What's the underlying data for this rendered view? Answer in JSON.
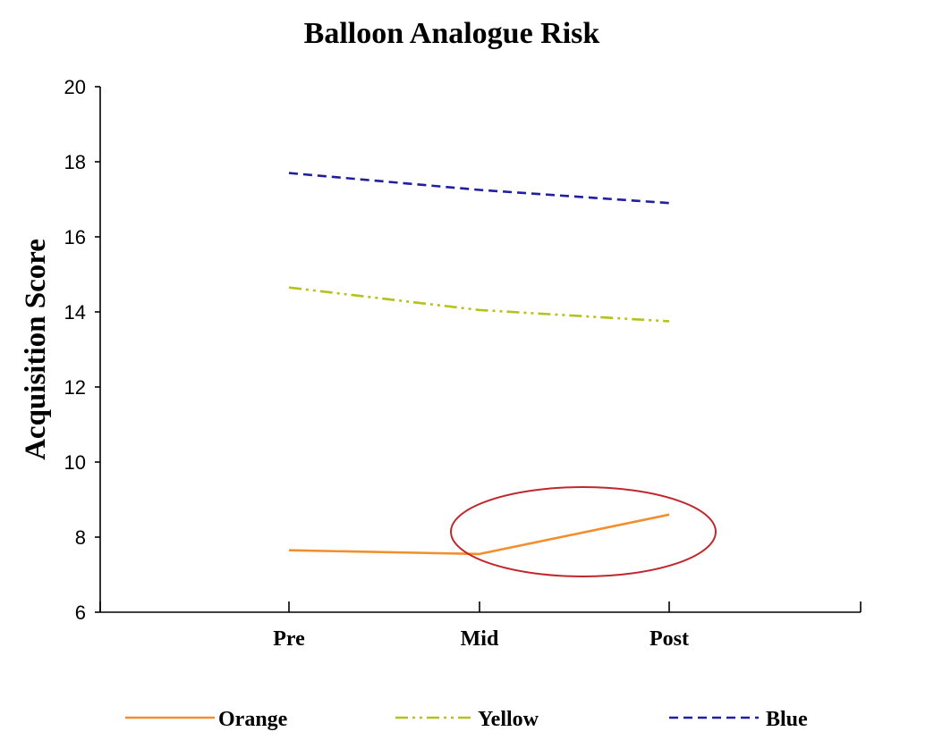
{
  "chart_data": {
    "type": "line",
    "title": "Balloon Analogue Risk",
    "xlabel": "",
    "ylabel": "Acquisition Score",
    "categories": [
      "Pre",
      "Mid",
      "Post"
    ],
    "ylim": [
      6,
      20
    ],
    "yticks": [
      "6",
      "8",
      "10",
      "12",
      "14",
      "16",
      "18",
      "20"
    ],
    "grid": false,
    "legend_position": "bottom",
    "series": [
      {
        "name": "Orange",
        "values": [
          7.65,
          7.55,
          8.6
        ],
        "color": "#f28e2b",
        "dash": "solid"
      },
      {
        "name": "Yellow",
        "values": [
          14.65,
          14.05,
          13.75
        ],
        "color": "#b5c21b",
        "dash": "dash-dot-dot"
      },
      {
        "name": "Blue",
        "values": [
          17.7,
          17.25,
          16.9
        ],
        "color": "#1f1fa0",
        "dash": "dashed"
      }
    ],
    "annotations": [
      {
        "type": "ellipse",
        "color": "#c0282d",
        "description_target": "Orange Mid-Post segment"
      }
    ]
  }
}
